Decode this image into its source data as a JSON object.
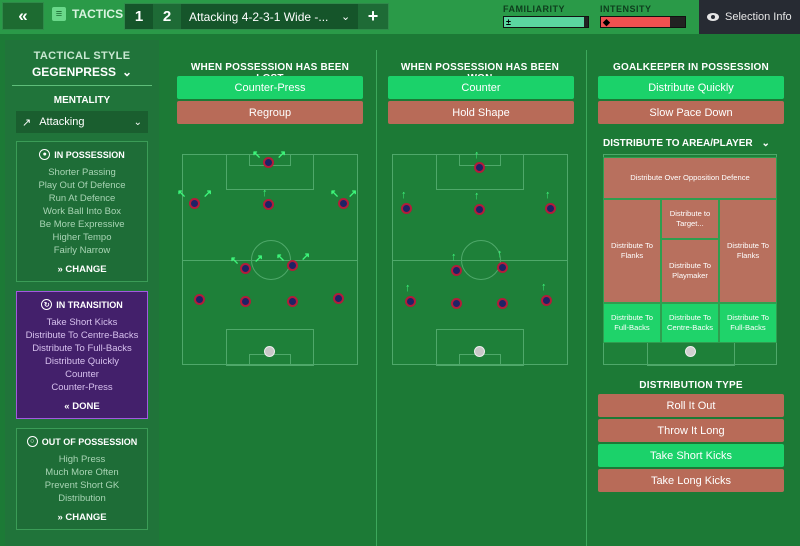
{
  "topbar": {
    "back_icon": "double-chevron-left",
    "tactics_label": "TACTICS",
    "slots": [
      "1",
      "2"
    ],
    "tactic_name": "Attacking 4-2-3-1 Wide -...",
    "familiarity_label": "FAMILIARITY",
    "intensity_label": "INTENSITY",
    "familiarity_level": 0.95,
    "intensity_level": 0.82,
    "familiarity_color": "#5bd6a0",
    "intensity_color": "#ef5050",
    "selection_info": "Selection Info"
  },
  "sidebar": {
    "tactical_style_label": "TACTICAL STYLE",
    "tactical_style": "GEGENPRESS",
    "mentality_label": "MENTALITY",
    "mentality": "Attacking",
    "in_possession": {
      "title": "IN POSSESSION",
      "items": [
        "Shorter Passing",
        "Play Out Of Defence",
        "Run At Defence",
        "Work Ball Into Box",
        "Be More Expressive",
        "Higher Tempo",
        "Fairly Narrow"
      ],
      "button": "CHANGE"
    },
    "in_transition": {
      "title": "IN TRANSITION",
      "items": [
        "Take Short Kicks",
        "Distribute To Centre-Backs",
        "Distribute To Full-Backs",
        "Distribute Quickly",
        "Counter",
        "Counter-Press"
      ],
      "button": "DONE"
    },
    "out_of_possession": {
      "title": "OUT OF POSSESSION",
      "items": [
        "High Press",
        "Much More Often",
        "Prevent Short GK",
        "Distribution"
      ],
      "button": "CHANGE"
    }
  },
  "lost": {
    "title": "WHEN POSSESSION HAS BEEN LOST",
    "options": [
      "Counter-Press",
      "Regroup"
    ]
  },
  "won": {
    "title": "WHEN POSSESSION HAS BEEN WON",
    "options": [
      "Counter",
      "Hold Shape"
    ]
  },
  "gk": {
    "title": "GOALKEEPER IN POSSESSION",
    "options": [
      "Distribute Quickly",
      "Slow Pace Down"
    ],
    "area_title": "DISTRIBUTE TO AREA/PLAYER",
    "zones": {
      "opposition_defence": "Distribute Over Opposition Defence",
      "flanks_left": "Distribute To Flanks",
      "target": "Distribute to Target...",
      "playmaker": "Distribute To Playmaker",
      "flanks_right": "Distribute To Flanks",
      "fb_left": "Distribute To Full-Backs",
      "centre_backs": "Distribute To Centre-Backs",
      "fb_right": "Distribute To Full-Backs"
    },
    "distribution_title": "DISTRIBUTION TYPE",
    "distribution": [
      "Roll It Out",
      "Throw It Long",
      "Take Short Kicks",
      "Take Long Kicks"
    ]
  },
  "colors": {
    "selected": "#1bd26a",
    "unselected": "#b86b58",
    "transition_panel": "#43206b"
  }
}
